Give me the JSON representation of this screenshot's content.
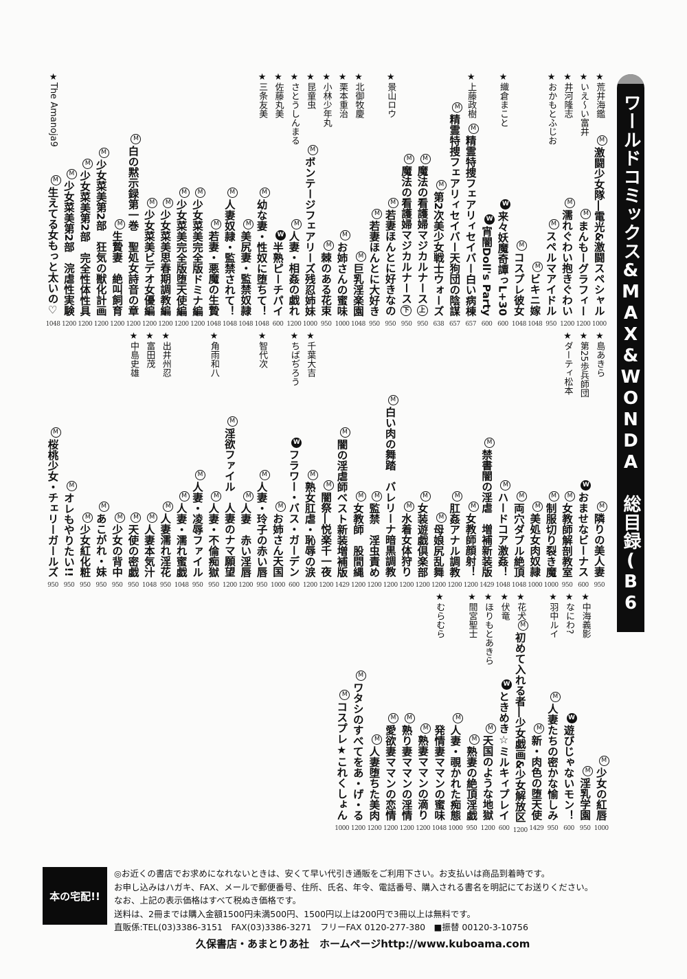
{
  "header": {
    "title": "ワールドコミックス&MAX&WONDA 総目録(B6判)"
  },
  "sections": {
    "top": {
      "columns": [
        {
          "author": "★荒井海鑑",
          "mark": "M",
          "title": "激闘少女隊―電光&激闘スペシャル",
          "price": "1000"
        },
        {
          "author": "★いえ～い富井",
          "mark": "M",
          "title": "まんもーグラフィー",
          "price": "1200"
        },
        {
          "author": "★井河隆志",
          "mark": "M",
          "title": "濡れぐわい抱きぐわい",
          "price": "1200"
        },
        {
          "author": "★おかもとふじお",
          "mark": "M",
          "title": "スペルマアイドル",
          "price": "950"
        },
        {
          "mark": "M",
          "title": "ビキニ嫁",
          "price": "1048"
        },
        {
          "mark": "M",
          "title": "コスプレ彼女",
          "price": "1048"
        },
        {
          "author": "★織倉まこと",
          "mark": "W",
          "title": "来々妖魔奇譚っL+30",
          "price": "600"
        },
        {
          "mark": "W",
          "title": "宵闇Doll's Party",
          "price": "600"
        },
        {
          "author": "★上藤政樹",
          "mark": "M",
          "title": "精霊特捜フェアリィセイバー白い病棟",
          "price": "657"
        },
        {
          "mark": "M",
          "title": "精霊特捜フェアリィセイバー天狗団の陰謀",
          "price": "657"
        },
        {
          "mark": "M",
          "title": "第2次美少女戦士ウォーズ",
          "price": "638"
        },
        {
          "mark": "M",
          "title": "魔法の看護婦マジカルナース",
          "vol": "上",
          "price": "950"
        },
        {
          "mark": "M",
          "title": "魔法の看護婦マジカルナース",
          "vol": "下",
          "price": "950"
        },
        {
          "author": "★景山ロウ",
          "mark": "M",
          "title": "若妻ほんとに好きなの",
          "price": "950"
        },
        {
          "mark": "M",
          "title": "若妻ほんとに大好き",
          "price": "950"
        },
        {
          "author": "★北御牧慶",
          "mark": "M",
          "title": "巨乳淫楽園",
          "price": "1048"
        },
        {
          "author": "★栗本重治",
          "mark": "M",
          "title": "お姉さんの蜜味",
          "price": "1000"
        },
        {
          "author": "★小林少年丸",
          "mark": "M",
          "title": "棘のある花束",
          "price": "950"
        },
        {
          "author": "★昆童虫",
          "mark": "M",
          "title": "ボンテージフェアリーズ残忍姉妹",
          "price": "1000"
        },
        {
          "author": "★さとうしんまる",
          "mark": "M",
          "title": "人妻・相姦の戯れ",
          "price": "1200"
        },
        {
          "author": "★佐藤丸美",
          "mark": "W",
          "title": "半熟ピーチパイ",
          "price": "600"
        },
        {
          "author": "★三条友美",
          "mark": "M",
          "title": "幼な妻・性奴に堕ちて！",
          "price": "1048"
        },
        {
          "mark": "M",
          "title": "美尻妻・監禁奴隷",
          "price": "1048"
        },
        {
          "mark": "M",
          "title": "人妻奴隷・監禁されて！",
          "price": "1048"
        },
        {
          "mark": "M",
          "title": "若妻・悪魔の生贄",
          "price": "1048"
        },
        {
          "mark": "M",
          "title": "少女菜美完全版ドミナ編",
          "price": "1200"
        },
        {
          "mark": "M",
          "title": "少女菜美完全版堕天使編",
          "price": "1200"
        },
        {
          "mark": "M",
          "title": "少女菜美思春期調教編",
          "price": "1200"
        },
        {
          "mark": "M",
          "title": "少女菜美ビデオ女優編",
          "price": "1200"
        },
        {
          "mark": "M",
          "title": "白の黙示録第一巻　聖処女詩音の章",
          "price": "1200"
        },
        {
          "mark": "M",
          "title": "生贄妻　絶叫飼育",
          "price": "1200"
        },
        {
          "mark": "M",
          "title": "少女菜美第2部　狂気の獣化計画",
          "price": "1200"
        },
        {
          "mark": "M",
          "title": "少女菜美第2部　完全性体性具",
          "price": "1200"
        },
        {
          "mark": "M",
          "title": "少女菜美第2部　浣虐性実験",
          "price": "1200"
        },
        {
          "author": "★The Amanoja9",
          "mark": "M",
          "title": "生えてる女もっと太いの♡",
          "price": "1048"
        }
      ]
    },
    "middle": {
      "columns": [
        {
          "author": "★島あきら",
          "mark": "M",
          "title": "隣りの美人妻",
          "price": "950"
        },
        {
          "author": "★第25歩兵師団",
          "mark": "W",
          "title": "おませなビーナス",
          "price": "600"
        },
        {
          "author": "★ダーティ松本",
          "mark": "M",
          "title": "女教師解剖教室",
          "price": "950"
        },
        {
          "mark": "M",
          "title": "制服切り裂き魔",
          "price": "1000"
        },
        {
          "mark": "M",
          "title": "美処女肉奴隷",
          "price": "1000"
        },
        {
          "mark": "M",
          "title": "両穴ダブル絶頂",
          "price": "1048"
        },
        {
          "mark": "M",
          "title": "ハードコア激姦！",
          "price": "1048"
        },
        {
          "mark": "M",
          "title": "禁書闇の淫虐　増補新装版",
          "price": "1429"
        },
        {
          "mark": "M",
          "title": "女教師顔射！",
          "price": "1200"
        },
        {
          "mark": "M",
          "title": "肛姦アナル調教",
          "price": "1200"
        },
        {
          "mark": "M",
          "title": "母娘尻乱舞",
          "price": "1200"
        },
        {
          "mark": "M",
          "title": "女装遊戯倶楽部",
          "price": "1200"
        },
        {
          "mark": "M",
          "title": "水着女体狩り",
          "price": "1200"
        },
        {
          "mark": "M",
          "title": "白い肉の舞踏　バレリーナ暗黒調教",
          "price": "1200"
        },
        {
          "mark": "M",
          "title": "監禁　淫虫責め",
          "price": "1200"
        },
        {
          "mark": "M",
          "title": "女教師　股間縄",
          "price": "1200"
        },
        {
          "mark": "M",
          "title": "闇の淫虐師ベスト新装増補版",
          "price": "1429"
        },
        {
          "mark": "M",
          "title": "闇祭―悦楽千一夜",
          "price": "1200"
        },
        {
          "author": "★千葉大吉",
          "mark": "M",
          "title": "熟女肛虐・恥辱の涙",
          "price": "1200"
        },
        {
          "author": "★ちばぢろう",
          "mark": "W",
          "title": "フラワー・バス・ガーデン",
          "price": "600"
        },
        {
          "mark": "M",
          "title": "お姉さん天国",
          "price": "1000"
        },
        {
          "author": "★智代次",
          "mark": "M",
          "title": "人妻・玲子の赤い唇",
          "price": "950"
        },
        {
          "mark": "M",
          "title": "人妻　赤い淫唇",
          "price": "1200"
        },
        {
          "mark": "M",
          "title": "淫欲ファイル　人妻のナマ願望",
          "price": "1200"
        },
        {
          "author": "★角雨和八",
          "mark": "M",
          "title": "人妻・不倫痴獄",
          "price": "950"
        },
        {
          "mark": "M",
          "title": "人妻・凌辱ファイル",
          "price": "950"
        },
        {
          "mark": "M",
          "title": "人妻・濡れ蜜戯",
          "price": "1048"
        },
        {
          "author": "★出井州忍",
          "mark": "M",
          "title": "人妻濡れ淫花",
          "price": "950"
        },
        {
          "author": "★富田茂",
          "mark": "M",
          "title": "人妻本気汁",
          "price": "1048"
        },
        {
          "author": "★中島史雄",
          "mark": "M",
          "title": "天使の密戯",
          "price": "950"
        },
        {
          "mark": "M",
          "title": "少女の背中",
          "price": "950"
        },
        {
          "mark": "M",
          "title": "あこがれ・妹",
          "price": "950"
        },
        {
          "mark": "M",
          "title": "少女紅化粧",
          "price": "950"
        },
        {
          "mark": "M",
          "title": "オレもやりたい!!",
          "price": "950"
        },
        {
          "mark": "M",
          "title": "桜桃少女・チェリーガールズ",
          "price": "950"
        }
      ]
    },
    "bottom": {
      "columns": [
        {
          "mark": "M",
          "title": "少女の紅唇",
          "price": "1000"
        },
        {
          "author": "★中海義影",
          "mark": "M",
          "title": "淫乳学園",
          "price": "950"
        },
        {
          "author": "★なにわ?",
          "mark": "W",
          "title": "遊びじゃないモン！",
          "price": "600"
        },
        {
          "author": "★羽中ルイ",
          "mark": "M",
          "title": "人妻たちの密かな愉しみ",
          "price": "950"
        },
        {
          "mark": "M",
          "title": "新・肉色の堕天使",
          "price": "1429"
        },
        {
          "author": "★花犬",
          "mark": "M",
          "title": "初めて入れる者―少女戯画&少女解放区",
          "price": "1200"
        },
        {
          "author": "★伏竜",
          "mark": "W",
          "title": "ときめき☆ミルキィプレイ",
          "price": "600"
        },
        {
          "author": "★ほりもとあきら",
          "mark": "M",
          "title": "天国のような地獄",
          "price": "1200"
        },
        {
          "author": "★間宮聖士",
          "mark": "M",
          "title": "熟妻の絶頂淫戯",
          "price": "950"
        },
        {
          "mark": "M",
          "title": "人妻・覗かれた痴態",
          "price": "1000"
        },
        {
          "author": "★むらむら",
          "title": "発情妻ママンの蜜味",
          "price": "1048"
        },
        {
          "mark": "M",
          "title": "熟妻ママンの滴り",
          "price": "1200"
        },
        {
          "mark": "M",
          "title": "熟り妻ママンの淫情",
          "price": "1200"
        },
        {
          "mark": "M",
          "title": "愛欲妻ママンの恋情",
          "price": "1200"
        },
        {
          "mark": "M",
          "title": "人妻堕ちた美肉",
          "price": "1200"
        },
        {
          "mark": "M",
          "title": "ワタシのすべてをあ・げ・る",
          "price": "1200"
        },
        {
          "mark": "M",
          "title": "コスプレ★これくしょん",
          "price": "1000"
        }
      ]
    }
  },
  "footer": {
    "badge": "本の宅配!!",
    "lines": [
      "◎お近くの書店でお求めになれないときは、安くて早い代引き通販をご利用下さい。お支払いは商品到着時です。",
      "お申し込みはハガキ、FAX、メールで郵便番号、住所、氏名、年令、電話番号、購入される書名を明記にてお送りください。",
      "なお、上記の表示価格はすべて税ぬき価格です。",
      "送料は、2冊までは購入金額1500円未満500円、1500円以上は200円で3冊以上は無料です。",
      "直販係:TEL(03)3386-3151　FAX(03)3386-3271　フリーFAX 0120-277-380　■振替 00120-3-10756"
    ],
    "publisher": "久保書店・あまとりあ社　ホームページhttp://www.kuboama.com"
  }
}
